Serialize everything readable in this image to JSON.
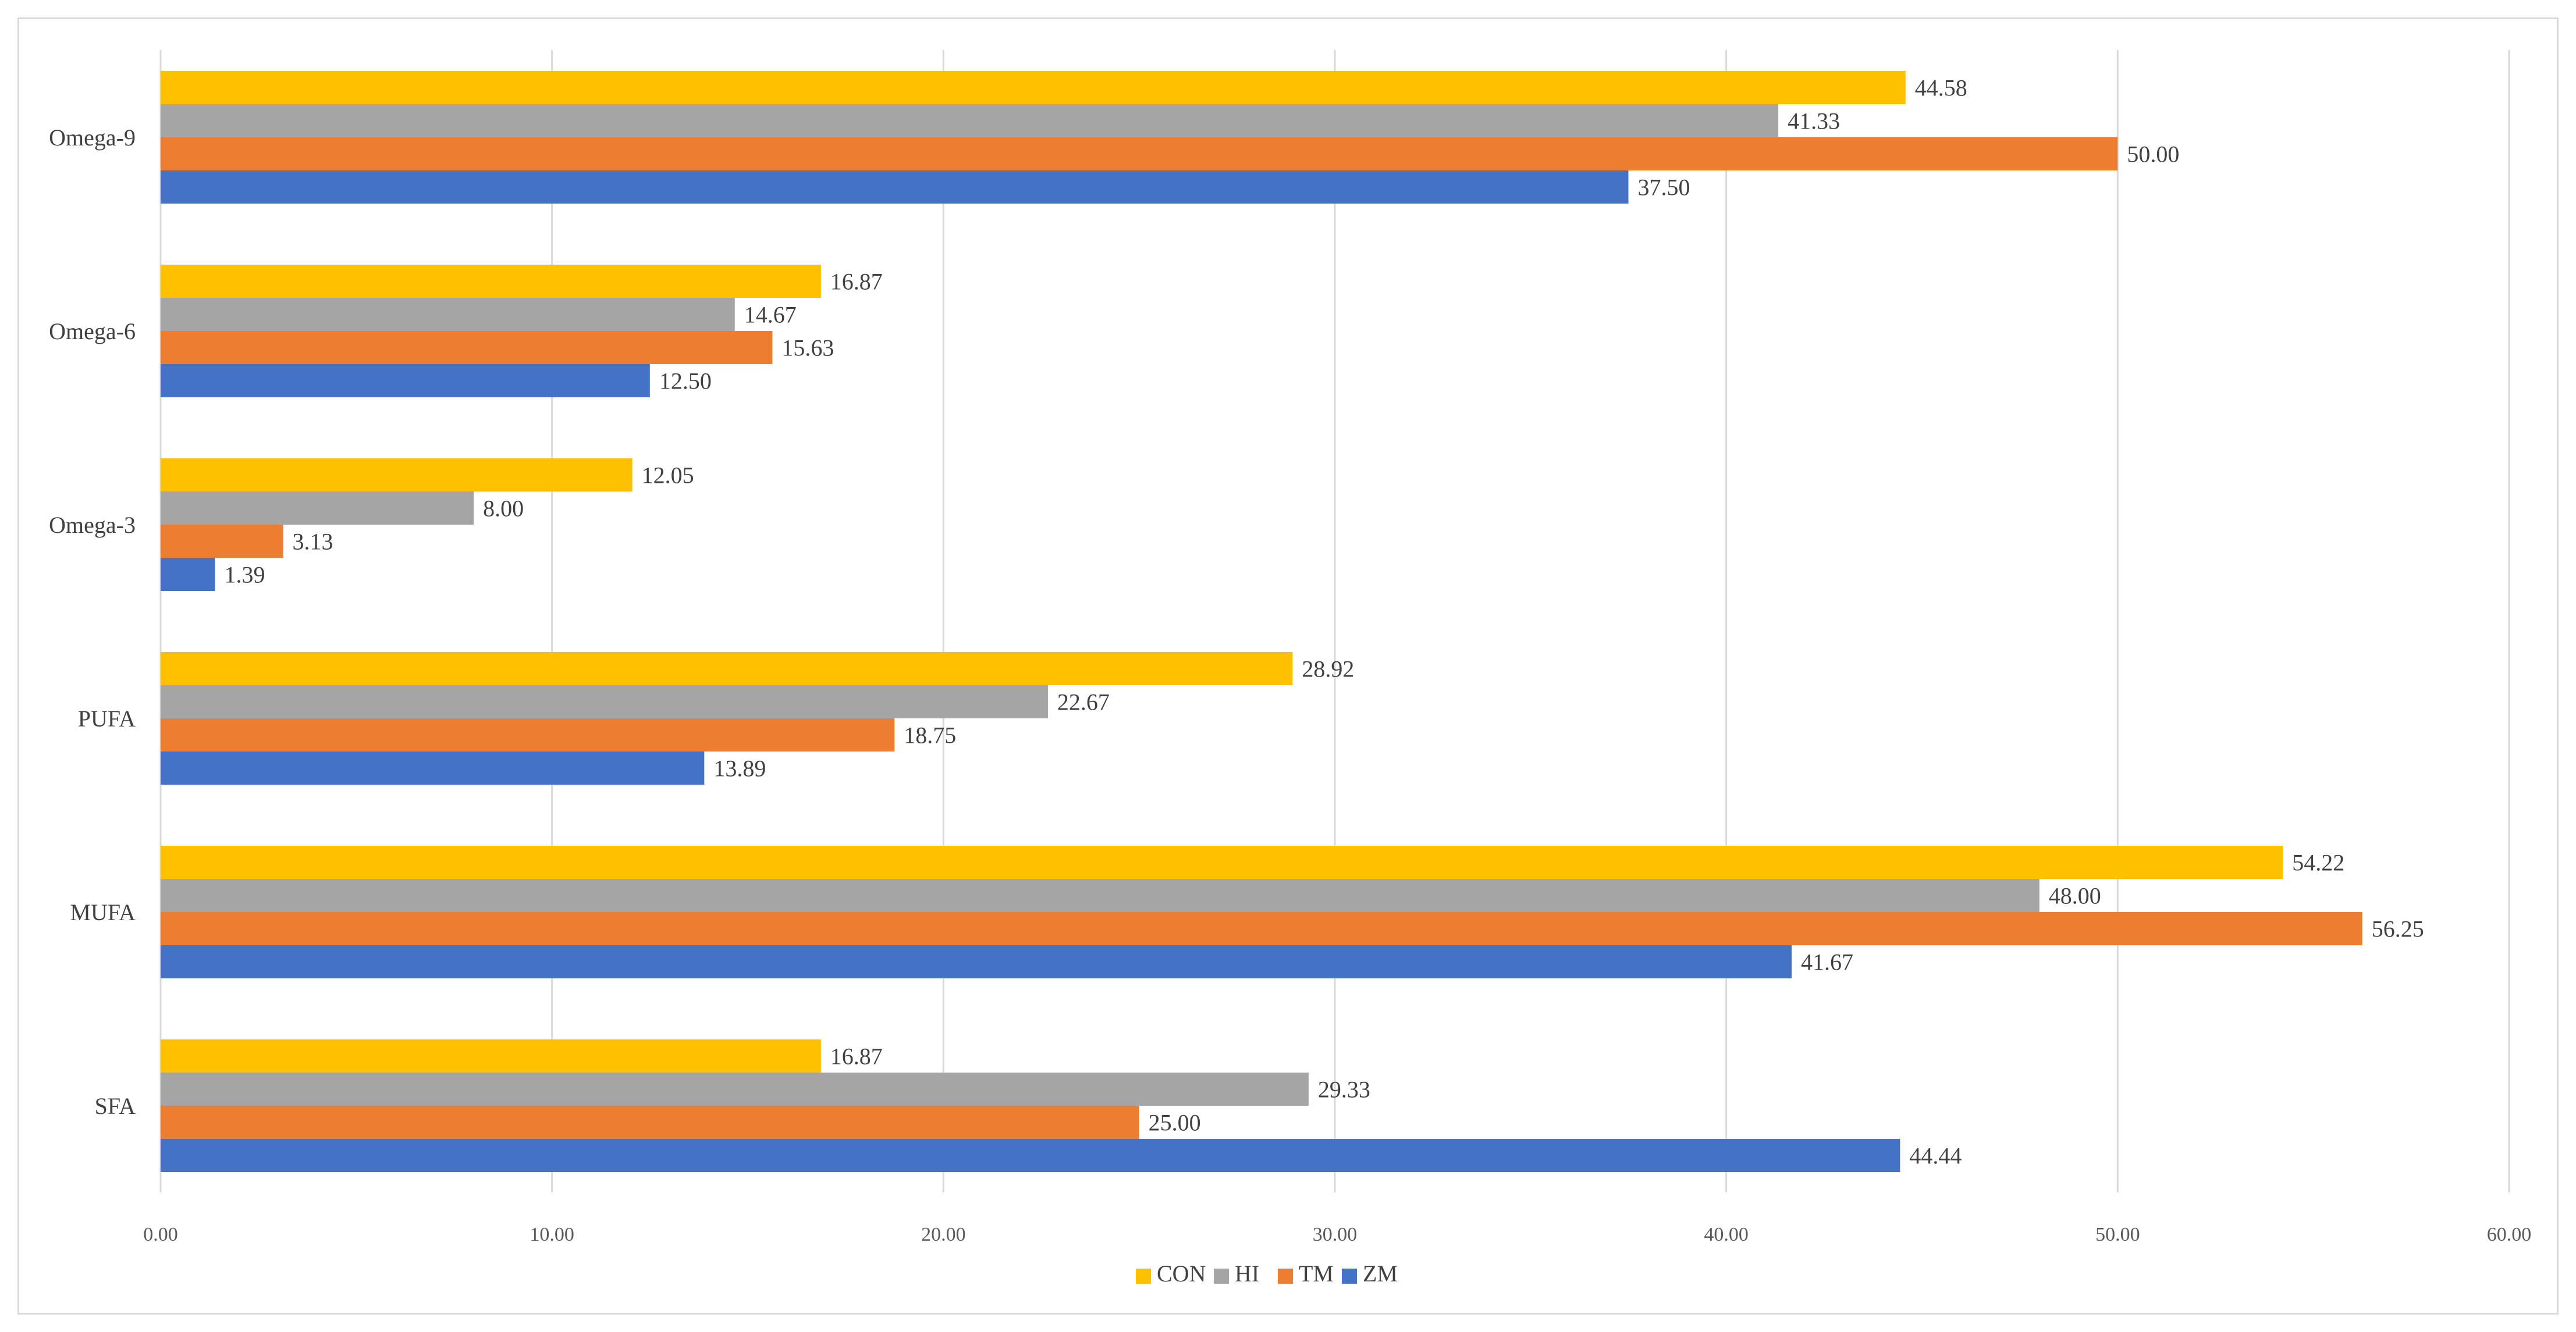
{
  "chart_data": {
    "type": "bar",
    "orientation": "horizontal",
    "title": "",
    "xlabel": "",
    "ylabel": "",
    "xlim": [
      0,
      60
    ],
    "x_ticks": [
      0,
      10,
      20,
      30,
      40,
      50,
      60
    ],
    "x_tick_labels": [
      "0.00",
      "10.00",
      "20.00",
      "30.00",
      "40.00",
      "50.00",
      "60.00"
    ],
    "grid": true,
    "legend_position": "bottom",
    "categories": [
      "Omega-9",
      "Omega-6",
      "Omega-3",
      "PUFA",
      "MUFA",
      "SFA"
    ],
    "series": [
      {
        "name": "CON",
        "color": "#ffc000",
        "values": [
          44.58,
          16.87,
          12.05,
          28.92,
          54.22,
          16.87
        ],
        "labels": [
          "44.58",
          "16.87",
          "12.05",
          "28.92",
          "54.22",
          "16.87"
        ]
      },
      {
        "name": "HI",
        "color": "#a5a5a5",
        "values": [
          41.33,
          14.67,
          8.0,
          22.67,
          48.0,
          29.33
        ],
        "labels": [
          "41.33",
          "14.67",
          "8.00",
          "22.67",
          "48.00",
          "29.33"
        ]
      },
      {
        "name": "TM",
        "color": "#ed7d31",
        "values": [
          50.0,
          15.63,
          3.13,
          18.75,
          56.25,
          25.0
        ],
        "labels": [
          "50.00",
          "15.63",
          "3.13",
          "18.75",
          "56.25",
          "25.00"
        ]
      },
      {
        "name": "ZM",
        "color": "#4472c4",
        "values": [
          37.5,
          12.5,
          1.39,
          13.89,
          41.67,
          44.44
        ],
        "labels": [
          "37.50",
          "12.50",
          "1.39",
          "13.89",
          "41.67",
          "44.44"
        ]
      }
    ]
  }
}
